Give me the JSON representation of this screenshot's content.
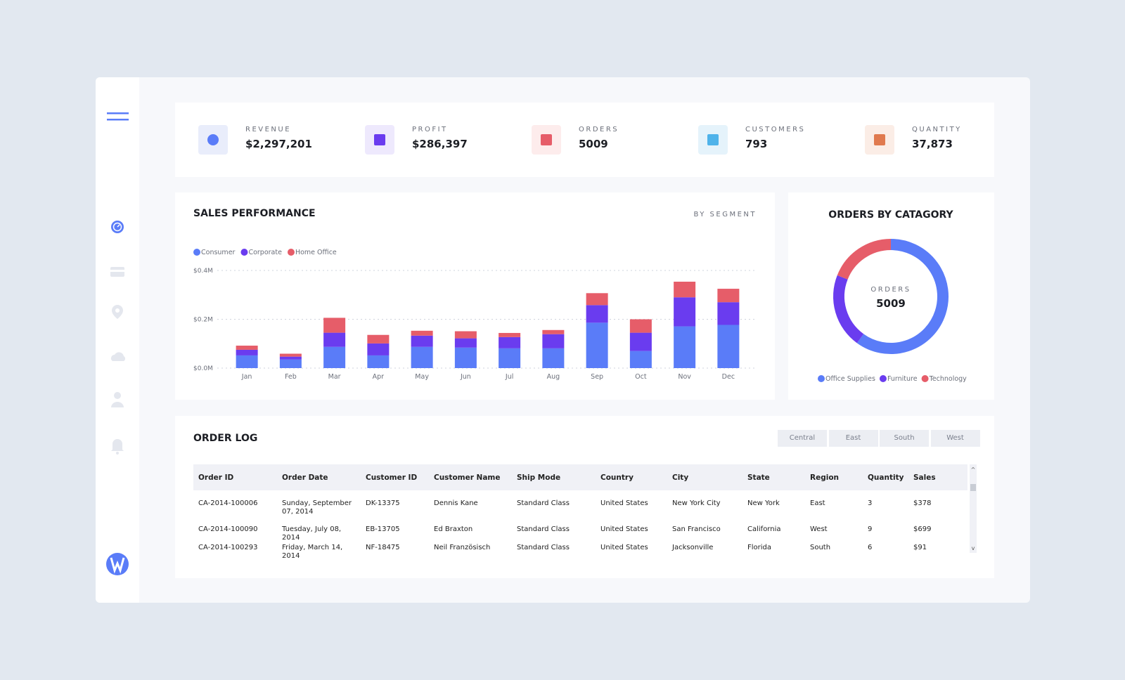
{
  "kpis": [
    {
      "label": "REVENUE",
      "value": "$2,297,201"
    },
    {
      "label": "PROFIT",
      "value": "$286,397"
    },
    {
      "label": "ORDERS",
      "value": "5009"
    },
    {
      "label": "CUSTOMERS",
      "value": "793"
    },
    {
      "label": "QUANTITY",
      "value": "37,873"
    }
  ],
  "chart_data": [
    {
      "type": "bar",
      "stacked": true,
      "title": "SALES PERFORMANCE",
      "subtitle": "BY SEGMENT",
      "categories": [
        "Jan",
        "Feb",
        "Mar",
        "Apr",
        "May",
        "Jun",
        "Jul",
        "Aug",
        "Sep",
        "Oct",
        "Nov",
        "Dec"
      ],
      "series": [
        {
          "name": "Consumer",
          "color": "#5a7cf8",
          "values": [
            0.052,
            0.035,
            0.087,
            0.052,
            0.087,
            0.084,
            0.081,
            0.081,
            0.186,
            0.07,
            0.171,
            0.177
          ]
        },
        {
          "name": "Corporate",
          "color": "#6a3cef",
          "values": [
            0.023,
            0.012,
            0.058,
            0.049,
            0.046,
            0.038,
            0.046,
            0.058,
            0.072,
            0.075,
            0.119,
            0.093
          ]
        },
        {
          "name": "Home Office",
          "color": "#e65d69",
          "values": [
            0.017,
            0.012,
            0.061,
            0.035,
            0.02,
            0.029,
            0.017,
            0.017,
            0.049,
            0.055,
            0.064,
            0.055
          ]
        }
      ],
      "ylim": [
        0,
        0.4
      ],
      "yticks": [
        {
          "value": 0,
          "label": "$0.0M"
        },
        {
          "value": 0.2,
          "label": "$0.2M"
        },
        {
          "value": 0.4,
          "label": "$0.4M"
        }
      ],
      "grid": true,
      "legend": "top-left"
    },
    {
      "type": "donut",
      "title": "ORDERS BY CATAGORY",
      "center_label": "ORDERS",
      "center_value": "5009",
      "categories": [
        "Office Supplies",
        "Furniture",
        "Technology"
      ],
      "values": [
        60,
        21,
        19
      ],
      "colors": [
        "#5a7cf8",
        "#6a3cef",
        "#e65d69"
      ],
      "legend": "bottom"
    }
  ],
  "order_log": {
    "title": "ORDER LOG",
    "filters": [
      "Central",
      "East",
      "South",
      "West"
    ],
    "columns": [
      "Order ID",
      "Order Date",
      "Customer ID",
      "Customer Name",
      "Ship Mode",
      "Country",
      "City",
      "State",
      "Region",
      "Quantity",
      "Sales"
    ],
    "rows": [
      [
        "CA-2014-100006",
        "Sunday, September 07, 2014",
        "DK-13375",
        "Dennis Kane",
        "Standard Class",
        "United States",
        "New York City",
        "New York",
        "East",
        "3",
        "$378"
      ],
      [
        "CA-2014-100090",
        "Tuesday, July 08, 2014",
        "EB-13705",
        "Ed Braxton",
        "Standard Class",
        "United States",
        "San Francisco",
        "California",
        "West",
        "9",
        "$699"
      ],
      [
        "CA-2014-100293",
        "Friday, March 14, 2014",
        "NF-18475",
        "Neil Französisch",
        "Standard Class",
        "United States",
        "Jacksonville",
        "Florida",
        "South",
        "6",
        "$91"
      ]
    ]
  }
}
